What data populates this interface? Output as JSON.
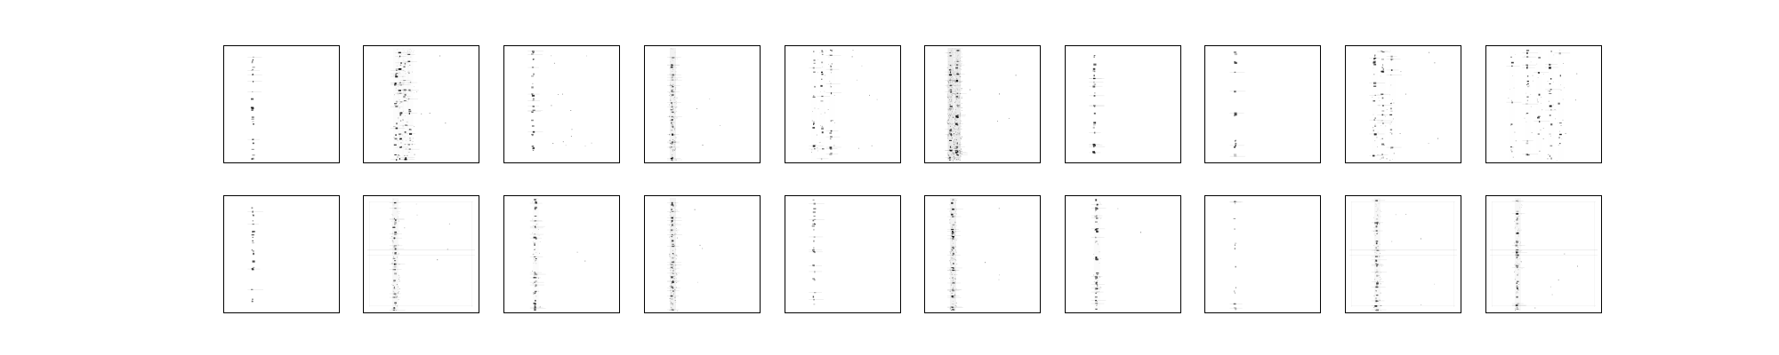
{
  "figure": {
    "rows": 2,
    "columns": 10,
    "style": "grayscale",
    "background_color": "#ffffff",
    "frame_color": "#000000",
    "ink_color": "#000000"
  },
  "panels": [
    {
      "row": 1,
      "column": 1,
      "pattern": "single-column-sparse-dots",
      "intensity": 0.8
    },
    {
      "row": 1,
      "column": 2,
      "pattern": "multi-column-dense-dots",
      "intensity": 1.0
    },
    {
      "row": 1,
      "column": 3,
      "pattern": "single-column-with-side-dots",
      "intensity": 0.8
    },
    {
      "row": 1,
      "column": 4,
      "pattern": "column-with-haze",
      "intensity": 0.9
    },
    {
      "row": 1,
      "column": 5,
      "pattern": "multi-column-dots",
      "intensity": 0.9
    },
    {
      "row": 1,
      "column": 6,
      "pattern": "column-with-heavy-haze",
      "intensity": 1.0
    },
    {
      "row": 1,
      "column": 7,
      "pattern": "single-column-sparse-dots",
      "intensity": 0.8
    },
    {
      "row": 1,
      "column": 8,
      "pattern": "single-column-very-sparse",
      "intensity": 0.7
    },
    {
      "row": 1,
      "column": 9,
      "pattern": "multi-column-dots",
      "intensity": 0.9
    },
    {
      "row": 1,
      "column": 10,
      "pattern": "wide-multi-column-dots",
      "intensity": 0.9
    },
    {
      "row": 2,
      "column": 1,
      "pattern": "single-column-sparse-dots",
      "intensity": 0.7
    },
    {
      "row": 2,
      "column": 2,
      "pattern": "column-with-cross-haze",
      "intensity": 0.8
    },
    {
      "row": 2,
      "column": 3,
      "pattern": "single-column-dense",
      "intensity": 0.8
    },
    {
      "row": 2,
      "column": 4,
      "pattern": "column-with-haze",
      "intensity": 0.9
    },
    {
      "row": 2,
      "column": 5,
      "pattern": "single-column-sparse-dots",
      "intensity": 0.7
    },
    {
      "row": 2,
      "column": 6,
      "pattern": "column-with-haze",
      "intensity": 0.9
    },
    {
      "row": 2,
      "column": 7,
      "pattern": "single-column-dense",
      "intensity": 0.8
    },
    {
      "row": 2,
      "column": 8,
      "pattern": "single-column-very-sparse",
      "intensity": 0.6
    },
    {
      "row": 2,
      "column": 9,
      "pattern": "column-with-cross-haze",
      "intensity": 0.8
    },
    {
      "row": 2,
      "column": 10,
      "pattern": "column-with-cross-haze",
      "intensity": 0.8
    }
  ]
}
